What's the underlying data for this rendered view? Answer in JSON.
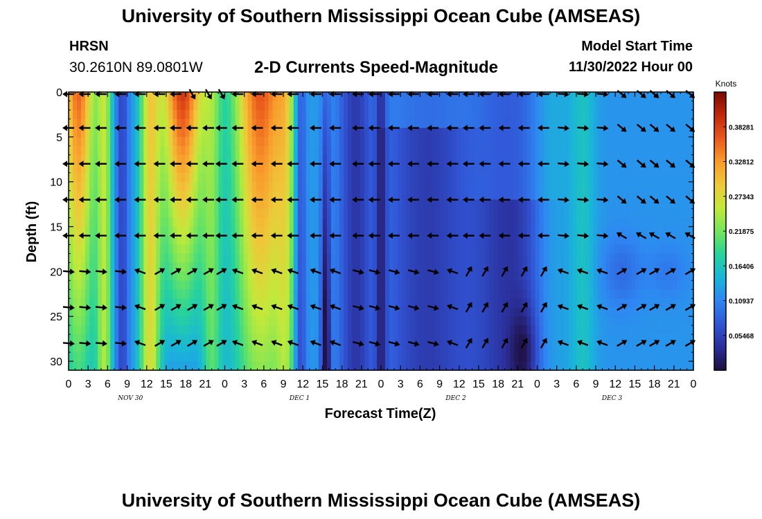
{
  "header": {
    "title_top": "University of Southern Mississippi Ocean Cube (AMSEAS)",
    "title_bottom": "University of Southern Mississippi Ocean Cube (AMSEAS)",
    "station": "HRSN",
    "coordinates": "30.2610N  89.0801W",
    "model_start_label": "Model Start Time",
    "model_start_value": "11/30/2022 Hour 00"
  },
  "chart_data": {
    "type": "heatmap",
    "title": "2-D Currents Speed-Magnitude",
    "xlabel": "Forecast Time(Z)",
    "ylabel": "Depth (ft)",
    "x_range_hours": [
      0,
      96
    ],
    "y_range_ft": [
      0,
      31
    ],
    "x_ticks": [
      "0",
      "3",
      "6",
      "9",
      "12",
      "15",
      "18",
      "21",
      "0",
      "3",
      "6",
      "9",
      "12",
      "15",
      "18",
      "21",
      "0",
      "3",
      "6",
      "9",
      "12",
      "15",
      "18",
      "21",
      "0",
      "3",
      "6",
      "9",
      "12",
      "15",
      "18",
      "21",
      "0"
    ],
    "y_ticks": [
      0,
      5,
      10,
      15,
      20,
      25,
      30
    ],
    "date_labels": [
      {
        "text": "NOV 30",
        "hour": 9.5
      },
      {
        "text": "DEC 1",
        "hour": 35.5
      },
      {
        "text": "DEC 2",
        "hour": 59.5
      },
      {
        "text": "DEC 3",
        "hour": 83.5
      }
    ],
    "colorbar": {
      "unit": "Knots",
      "ticks": [
        "0.38281",
        "0.32812",
        "0.27343",
        "0.21875",
        "0.16406",
        "0.10937",
        "0.05468"
      ],
      "tick_values": [
        0.38281,
        0.32812,
        0.27343,
        0.21875,
        0.16406,
        0.10937,
        0.05468
      ],
      "min": 0.0,
      "max": 0.4375
    },
    "arrow_depths_ft": [
      0,
      4,
      8,
      12,
      16,
      20,
      24,
      28
    ],
    "arrow_hours": [
      0,
      2.5,
      5,
      8,
      11,
      14,
      16.5,
      19,
      21.5,
      23.5,
      26,
      29,
      32,
      34.5,
      38,
      41,
      44.5,
      47,
      50,
      53,
      56,
      59,
      61.5,
      64,
      67,
      70,
      73,
      76,
      79,
      82,
      85,
      88,
      90,
      92.5,
      95.5
    ],
    "colors": {
      "colormap": [
        "#1e0f3e",
        "#2b2f9a",
        "#3155d6",
        "#2f86f2",
        "#19b5d9",
        "#27d39a",
        "#74e55b",
        "#c2e93a",
        "#efc83a",
        "#f99b2c",
        "#e9591c",
        "#c0290b",
        "#7a0a03"
      ]
    }
  }
}
